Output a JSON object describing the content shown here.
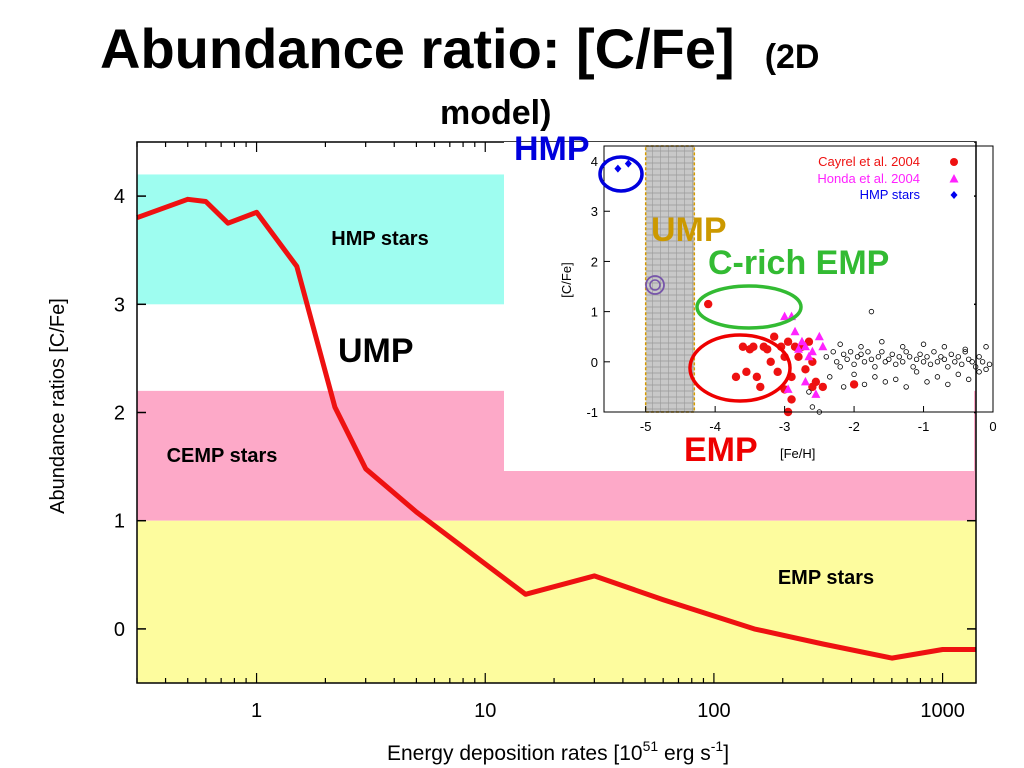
{
  "slide": {
    "title": "Abundance ratio: [C/Fe]",
    "subtitle_line1": "(2D",
    "subtitle_line2": "model)"
  },
  "chart_data": [
    {
      "type": "line",
      "xscale": "log",
      "xlabel": "Energy deposition rates [10",
      "xlabel_exp1": "51",
      "xlabel_mid": " erg s",
      "xlabel_exp2": "-1",
      "xlabel_end": "]",
      "ylabel": "Abundance ratios [C/Fe]",
      "xlim": [
        0.3,
        1400
      ],
      "ylim": [
        -0.5,
        4.5
      ],
      "xticks": [
        1,
        10,
        100,
        1000
      ],
      "xtick_labels": [
        "1",
        "10",
        "100",
        "1000"
      ],
      "yticks": [
        0,
        1,
        2,
        3,
        4
      ],
      "ytick_labels": [
        "0",
        "1",
        "2",
        "3",
        "4"
      ],
      "line_color": "#ee1111",
      "series": [
        {
          "x": [
            0.3,
            0.5,
            0.6,
            0.75,
            1.0,
            1.5,
            2.2,
            3.0,
            5.0,
            15,
            30,
            60,
            150,
            300,
            600,
            1000,
            1400
          ],
          "y": [
            3.8,
            3.97,
            3.95,
            3.75,
            3.85,
            3.35,
            2.05,
            1.48,
            1.08,
            0.32,
            0.49,
            0.27,
            0.0,
            -0.14,
            -0.27,
            -0.19,
            -0.19
          ]
        }
      ],
      "bands": [
        {
          "name": "HMP stars",
          "y0": 3.0,
          "y1": 4.2,
          "x0": 0.3,
          "x1": 12.5,
          "color": "#9efdf0"
        },
        {
          "name": "CEMP stars",
          "y0": 1.0,
          "y1": 2.2,
          "x0": 0.3,
          "x1": 1400,
          "color": "#fda9c8"
        },
        {
          "name": "EMP stars",
          "y0": -0.5,
          "y1": 1.0,
          "x0": 0.3,
          "x1": 1400,
          "color": "#fdfc9e"
        }
      ],
      "annotations": [
        "UMP"
      ]
    },
    {
      "type": "scatter",
      "xlabel": "[Fe/H]",
      "ylabel": "[C/Fe]",
      "xlim": [
        -5.6,
        0
      ],
      "ylim": [
        -1,
        4.3
      ],
      "xticks": [
        -5,
        -4,
        -3,
        -2,
        -1,
        0
      ],
      "xtick_labels": [
        "-5",
        "-4",
        "-3",
        "-2",
        "-1",
        "0"
      ],
      "yticks": [
        -1,
        0,
        1,
        2,
        3,
        4
      ],
      "ytick_labels": [
        "-1",
        "0",
        "1",
        "2",
        "3",
        "4"
      ],
      "legend_position": "top-right",
      "series": [
        {
          "name": "Cayrel et al. 2004",
          "marker": "circle",
          "color": "#ee1111",
          "x": [
            -4.1,
            -3.6,
            -3.5,
            -3.45,
            -3.4,
            -3.3,
            -3.25,
            -3.2,
            -3.15,
            -3.1,
            -3.05,
            -3.0,
            -2.95,
            -2.9,
            -2.85,
            -2.8,
            -2.75,
            -2.7,
            -2.65,
            -2.6,
            -2.55,
            -3.7,
            -3.35,
            -3.0,
            -2.9,
            -2.95,
            -2.6,
            -2.45,
            -2.0,
            -3.55
          ],
          "y": [
            1.15,
            0.3,
            0.25,
            0.3,
            -0.3,
            0.3,
            0.25,
            0.0,
            0.5,
            -0.2,
            0.3,
            0.1,
            0.4,
            -0.3,
            0.3,
            0.1,
            0.3,
            -0.15,
            0.4,
            0.0,
            -0.4,
            -0.3,
            -0.5,
            -0.55,
            -0.75,
            -1.0,
            -0.5,
            -0.5,
            -0.45,
            -0.2
          ]
        },
        {
          "name": "Honda et al. 2004",
          "marker": "triangle",
          "color": "#ff22ff",
          "x": [
            -3.0,
            -2.9,
            -2.8,
            -2.75,
            -2.7,
            -2.65,
            -2.6,
            -2.5,
            -2.45,
            -2.55,
            -2.85,
            -2.95,
            -2.7
          ],
          "y": [
            0.9,
            0.9,
            0.25,
            0.4,
            0.3,
            0.1,
            0.2,
            0.5,
            0.3,
            -0.65,
            0.6,
            -0.55,
            -0.4
          ]
        },
        {
          "name": "HMP stars",
          "marker": "diamond",
          "color": "#0000ee",
          "x": [
            -5.4,
            -5.25
          ],
          "y": [
            3.85,
            3.95
          ]
        },
        {
          "name": "",
          "marker": "open-circle",
          "color": "#000000",
          "x": [
            -2.4,
            -2.3,
            -2.25,
            -2.2,
            -2.15,
            -2.1,
            -2.05,
            -2.0,
            -1.95,
            -1.9,
            -1.85,
            -1.8,
            -1.75,
            -1.7,
            -1.65,
            -1.6,
            -1.55,
            -1.5,
            -1.45,
            -1.4,
            -1.35,
            -1.3,
            -1.25,
            -1.2,
            -1.15,
            -1.1,
            -1.05,
            -1.0,
            -0.95,
            -0.9,
            -0.85,
            -0.8,
            -0.75,
            -0.7,
            -0.65,
            -0.6,
            -0.55,
            -0.5,
            -0.45,
            -0.4,
            -0.35,
            -0.3,
            -0.25,
            -0.2,
            -0.15,
            -0.1,
            -0.05,
            -2.35,
            -2.0,
            -1.7,
            -1.4,
            -1.1,
            -0.8,
            -0.5,
            -0.2,
            -2.2,
            -1.9,
            -1.6,
            -1.3,
            -1.0,
            -0.7,
            -0.4,
            -0.1,
            -2.6,
            -2.5,
            -2.15,
            -1.85,
            -1.55,
            -1.25,
            -0.95,
            -0.65,
            -0.35,
            -1.75,
            -2.65
          ],
          "y": [
            0.1,
            0.2,
            0.0,
            -0.1,
            0.15,
            0.05,
            0.2,
            -0.05,
            0.1,
            0.15,
            0.0,
            0.2,
            0.05,
            -0.1,
            0.1,
            0.2,
            0.0,
            0.05,
            0.15,
            -0.05,
            0.1,
            0.0,
            0.2,
            0.1,
            -0.1,
            0.05,
            0.15,
            0.0,
            0.1,
            -0.05,
            0.2,
            0.0,
            0.1,
            0.05,
            -0.1,
            0.15,
            0.0,
            0.1,
            -0.05,
            0.2,
            0.05,
            0.0,
            -0.1,
            0.1,
            0.0,
            -0.15,
            -0.05,
            -0.3,
            -0.25,
            -0.3,
            -0.35,
            -0.2,
            -0.3,
            -0.25,
            -0.2,
            0.35,
            0.3,
            0.4,
            0.3,
            0.35,
            0.3,
            0.25,
            0.3,
            -0.9,
            -1.0,
            -0.5,
            -0.45,
            -0.4,
            -0.5,
            -0.4,
            -0.45,
            -0.35,
            1.0,
            -0.6
          ]
        }
      ],
      "shaded_region": {
        "x0": -5.0,
        "x1": -4.3
      },
      "annotations": {
        "hmp": "HMP",
        "ump": "UMP",
        "c_rich_emp": "C-rich EMP",
        "emp": "EMP"
      },
      "colors": {
        "hmp": "#0000dd",
        "ump": "#cc9900",
        "c_rich_emp": "#33bb33",
        "emp": "#ee0000",
        "special_point": "#7755aa"
      }
    }
  ]
}
